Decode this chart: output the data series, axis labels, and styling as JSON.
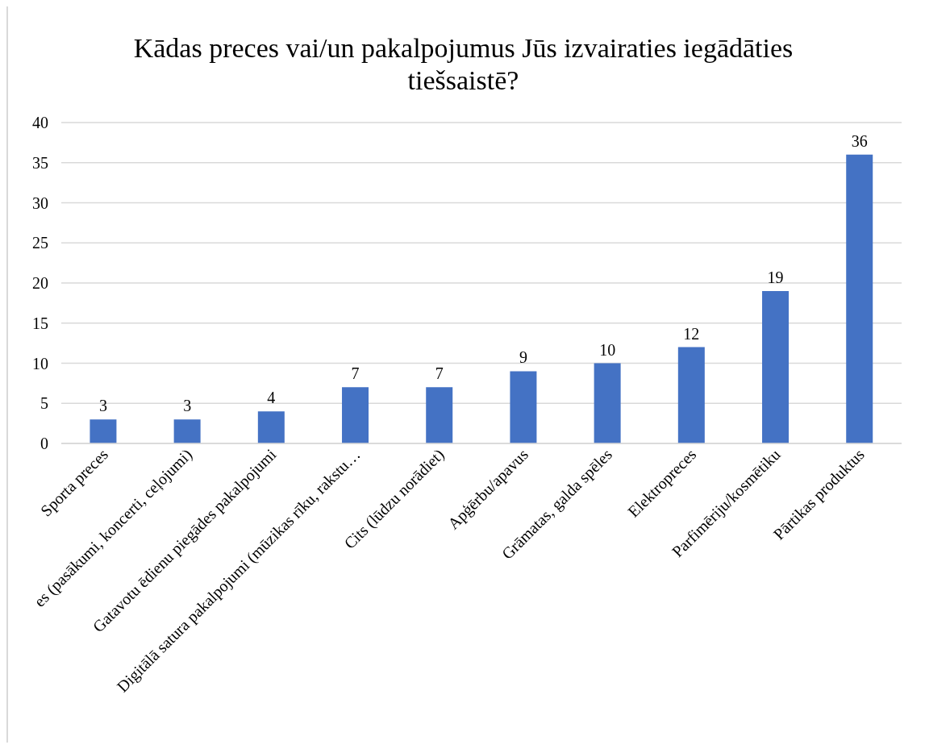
{
  "chart_data": {
    "type": "bar",
    "title": "Kādas preces vai/un pakalpojumus Jūs izvairaties iegādāties tiešsaistē?",
    "categories": [
      "Sporta preces",
      "es (pasākumi, koncerti, ceļojumi)",
      "Gatavotu ēdienu piegādes pakalpojumi",
      "Digitālā satura pakalpojumi (mūzikas rīku, rakstu…",
      "Cits (lūdzu norādiet)",
      "Apģērbu/apavus",
      "Grāmatas, galda spēles",
      "Elektropreces",
      "Parfimēriju/kosmētiku",
      "Pārtikas produktus"
    ],
    "values": [
      3,
      3,
      4,
      7,
      7,
      9,
      10,
      12,
      19,
      36
    ],
    "color": "#4472c4",
    "ylim": [
      0,
      40
    ],
    "yticks": [
      0,
      5,
      10,
      15,
      20,
      25,
      30,
      35,
      40
    ],
    "grid": "y",
    "data_labels": true
  }
}
